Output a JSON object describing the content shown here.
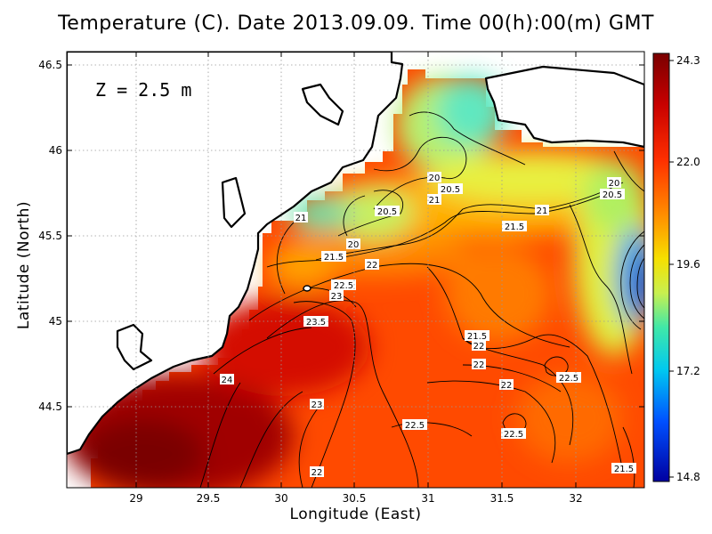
{
  "title": "Temperature (C). Date 2013.09.09. Time 00(h):00(m) GMT",
  "depth_label": "Z = 2.5 m",
  "axes": {
    "xlabel": "Longitude (East)",
    "ylabel": "Latitude (North)",
    "xticks": [
      "29",
      "29.5",
      "30",
      "30.5",
      "31",
      "31.5",
      "32"
    ],
    "yticks": [
      "46.5",
      "46",
      "45.5",
      "45",
      "44.5"
    ]
  },
  "colorbar": {
    "ticks": [
      "24.3",
      "22.0",
      "19.6",
      "17.2",
      "14.8"
    ],
    "colors": [
      "#7a0000",
      "#c80000",
      "#ff2a00",
      "#ff8a00",
      "#f6d800",
      "#c8f050",
      "#50e8a0",
      "#00c8f0",
      "#0060ff",
      "#0000a0"
    ]
  },
  "contour_labels": [
    {
      "text": "20"
    },
    {
      "text": "20.5"
    },
    {
      "text": "21"
    },
    {
      "text": "20.5"
    },
    {
      "text": "21"
    },
    {
      "text": "21"
    },
    {
      "text": "21.5"
    },
    {
      "text": "20"
    },
    {
      "text": "21.5"
    },
    {
      "text": "22"
    },
    {
      "text": "22.5"
    },
    {
      "text": "23"
    },
    {
      "text": "23.5"
    },
    {
      "text": "24"
    },
    {
      "text": "23"
    },
    {
      "text": "21.5"
    },
    {
      "text": "22"
    },
    {
      "text": "22"
    },
    {
      "text": "22"
    },
    {
      "text": "22.5"
    },
    {
      "text": "22.5"
    },
    {
      "text": "22.5"
    },
    {
      "text": "22"
    },
    {
      "text": "20"
    },
    {
      "text": "20.5"
    },
    {
      "text": "21.5"
    }
  ]
}
